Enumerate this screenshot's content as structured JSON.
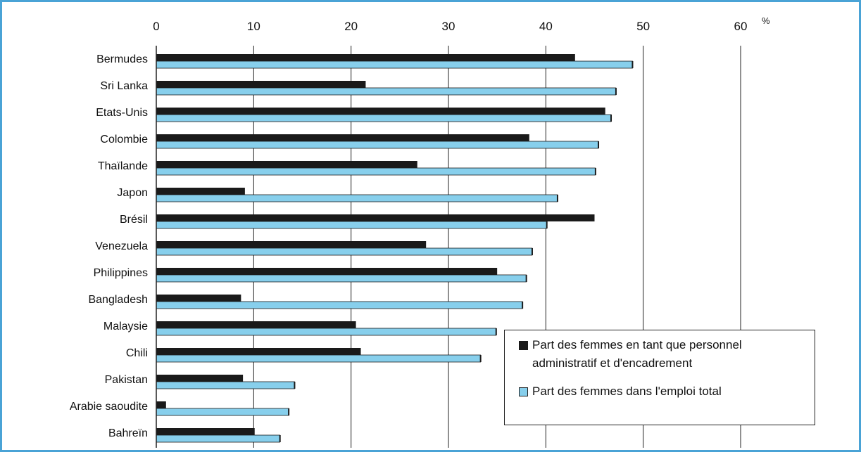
{
  "chart_data": {
    "type": "bar",
    "orientation": "horizontal",
    "categories": [
      "Bermudes",
      "Sri Lanka",
      "Etats-Unis",
      "Colombie",
      "Thaïlande",
      "Japon",
      "Brésil",
      "Venezuela",
      "Philippines",
      "Bangladesh",
      "Malaysie",
      "Chili",
      "Pakistan",
      "Arabie saoudite",
      "Bahreïn"
    ],
    "series": [
      {
        "name": "Part des femmes  en tant que personnel administratif et d'encadrement",
        "color": "#1a1a1a",
        "values": [
          43.0,
          21.5,
          46.1,
          38.3,
          26.8,
          9.1,
          45.0,
          27.7,
          35.0,
          8.7,
          20.5,
          21.0,
          8.9,
          1.0,
          10.1
        ]
      },
      {
        "name": "Part des femmes dans l'emploi total",
        "color": "#87cfec",
        "values": [
          48.9,
          47.2,
          46.7,
          45.4,
          45.1,
          41.2,
          40.1,
          38.6,
          38.0,
          37.6,
          34.9,
          33.3,
          14.2,
          13.6,
          12.7
        ]
      }
    ],
    "xlim": [
      0,
      60
    ],
    "xticks": [
      "0",
      "10",
      "20",
      "30",
      "40",
      "50",
      "60"
    ],
    "unit": "%",
    "grid": true,
    "legend_position": "bottom-right"
  },
  "legend": {
    "line1a": "Part des femmes  en tant que personnel",
    "line1b": "administratif et d'encadrement",
    "line2": "Part des femmes dans l'emploi total"
  },
  "colors": {
    "border": "#4aa3d6",
    "dark": "#1a1a1a",
    "light": "#87cfec"
  }
}
